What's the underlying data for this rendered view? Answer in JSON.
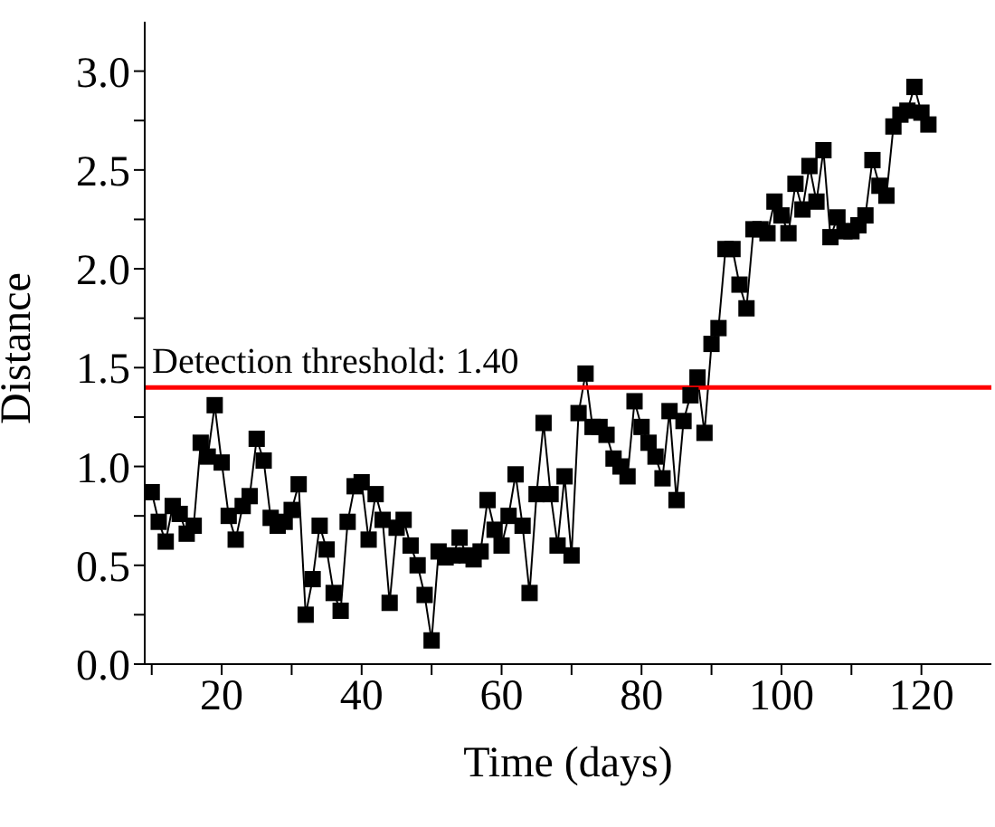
{
  "chart_data": {
    "type": "line",
    "xlabel": "Time (days)",
    "ylabel": "Distance",
    "x": [
      10,
      11,
      12,
      13,
      14,
      15,
      16,
      17,
      18,
      19,
      20,
      21,
      22,
      23,
      24,
      25,
      26,
      27,
      28,
      29,
      30,
      31,
      32,
      33,
      34,
      35,
      36,
      37,
      38,
      39,
      40,
      41,
      42,
      43,
      44,
      45,
      46,
      47,
      48,
      49,
      50,
      51,
      52,
      53,
      54,
      55,
      56,
      57,
      58,
      59,
      60,
      61,
      62,
      63,
      64,
      65,
      66,
      67,
      68,
      69,
      70,
      71,
      72,
      73,
      74,
      75,
      76,
      77,
      78,
      79,
      80,
      81,
      82,
      83,
      84,
      85,
      86,
      87,
      88,
      89,
      90,
      91,
      92,
      93,
      94,
      95,
      96,
      97,
      98,
      99,
      100,
      101,
      102,
      103,
      104,
      105,
      106,
      107,
      108,
      109,
      110,
      111,
      112,
      113,
      114,
      115,
      116,
      117,
      118,
      119,
      120,
      121
    ],
    "series": [
      {
        "color": "#000000",
        "values": [
          0.87,
          0.72,
          0.62,
          0.8,
          0.76,
          0.66,
          0.7,
          1.12,
          1.05,
          1.31,
          1.02,
          0.75,
          0.63,
          0.8,
          0.85,
          1.14,
          1.03,
          0.74,
          0.7,
          0.72,
          0.78,
          0.91,
          0.25,
          0.43,
          0.7,
          0.58,
          0.36,
          0.27,
          0.72,
          0.9,
          0.92,
          0.63,
          0.86,
          0.73,
          0.31,
          0.69,
          0.73,
          0.6,
          0.5,
          0.35,
          0.12,
          0.57,
          0.54,
          0.55,
          0.64,
          0.55,
          0.53,
          0.57,
          0.83,
          0.68,
          0.6,
          0.75,
          0.96,
          0.7,
          0.36,
          0.86,
          1.22,
          0.86,
          0.6,
          0.95,
          0.55,
          1.27,
          1.47,
          1.2,
          1.2,
          1.16,
          1.04,
          1.0,
          0.95,
          1.33,
          1.2,
          1.12,
          1.05,
          0.94,
          1.28,
          0.83,
          1.23,
          1.36,
          1.45,
          1.17,
          1.62,
          1.7,
          2.1,
          2.1,
          1.92,
          1.8,
          2.2,
          2.2,
          2.18,
          2.34,
          2.27,
          2.18,
          2.43,
          2.3,
          2.52,
          2.34,
          2.6,
          2.16,
          2.26,
          2.19,
          2.19,
          2.22,
          2.27,
          2.55,
          2.42,
          2.37,
          2.72,
          2.78,
          2.8,
          2.92,
          2.79,
          2.73
        ]
      }
    ],
    "marker": "square",
    "line_style": "solid",
    "grid": false,
    "legend": false,
    "xlim": [
      9,
      130
    ],
    "xticks": [
      {
        "value": 10,
        "label": null
      },
      20,
      {
        "value": 30,
        "label": null
      },
      40,
      {
        "value": 50,
        "label": null
      },
      60,
      {
        "value": 70,
        "label": null
      },
      80,
      {
        "value": 90,
        "label": null
      },
      100,
      {
        "value": 110,
        "label": null
      },
      120
    ],
    "ylim": [
      0,
      3.25
    ],
    "yticks": [
      {
        "value": 0,
        "label": "0.0"
      },
      {
        "value": 0.25,
        "label": null
      },
      {
        "value": 0.5,
        "label": "0.5"
      },
      {
        "value": 0.75,
        "label": null
      },
      {
        "value": 1,
        "label": "1.0"
      },
      {
        "value": 1.25,
        "label": null
      },
      {
        "value": 1.5,
        "label": "1.5"
      },
      {
        "value": 1.75,
        "label": null
      },
      {
        "value": 2,
        "label": "2.0"
      },
      {
        "value": 2.25,
        "label": null
      },
      {
        "value": 2.5,
        "label": "2.5"
      },
      {
        "value": 2.75,
        "label": null
      },
      {
        "value": 3,
        "label": "3.0"
      }
    ],
    "ref_lines": [
      {
        "axis": "y",
        "value": 1.4,
        "label": "Detection threshold: 1.40",
        "color": "#ff0000"
      }
    ]
  }
}
